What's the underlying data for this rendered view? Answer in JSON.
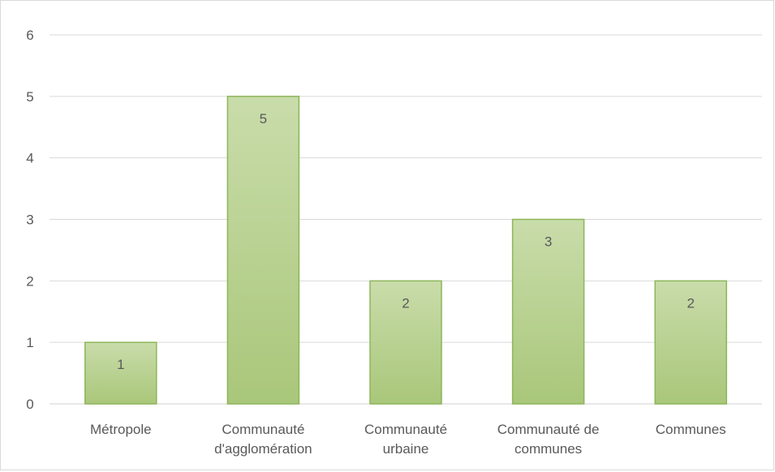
{
  "chart_data": {
    "type": "bar",
    "title": "",
    "xlabel": "",
    "ylabel": "",
    "categories": [
      [
        "Métropole"
      ],
      [
        "Communauté",
        "d'agglomération"
      ],
      [
        "Communauté",
        "urbaine"
      ],
      [
        "Communauté de",
        "communes"
      ],
      [
        "Communes"
      ]
    ],
    "values": [
      1,
      5,
      2,
      3,
      2
    ],
    "data_labels": [
      "1",
      "5",
      "2",
      "3",
      "2"
    ],
    "ylim": [
      0,
      6
    ],
    "yticks": [
      0,
      1,
      2,
      3,
      4,
      5,
      6
    ],
    "grid": true,
    "legend": "none",
    "colors": {
      "bar_fill_top": "#c9dcaa",
      "bar_fill_bottom": "#a9c77a",
      "bar_stroke": "#8db65a",
      "grid": "#d9d9d9",
      "text": "#595959"
    }
  }
}
